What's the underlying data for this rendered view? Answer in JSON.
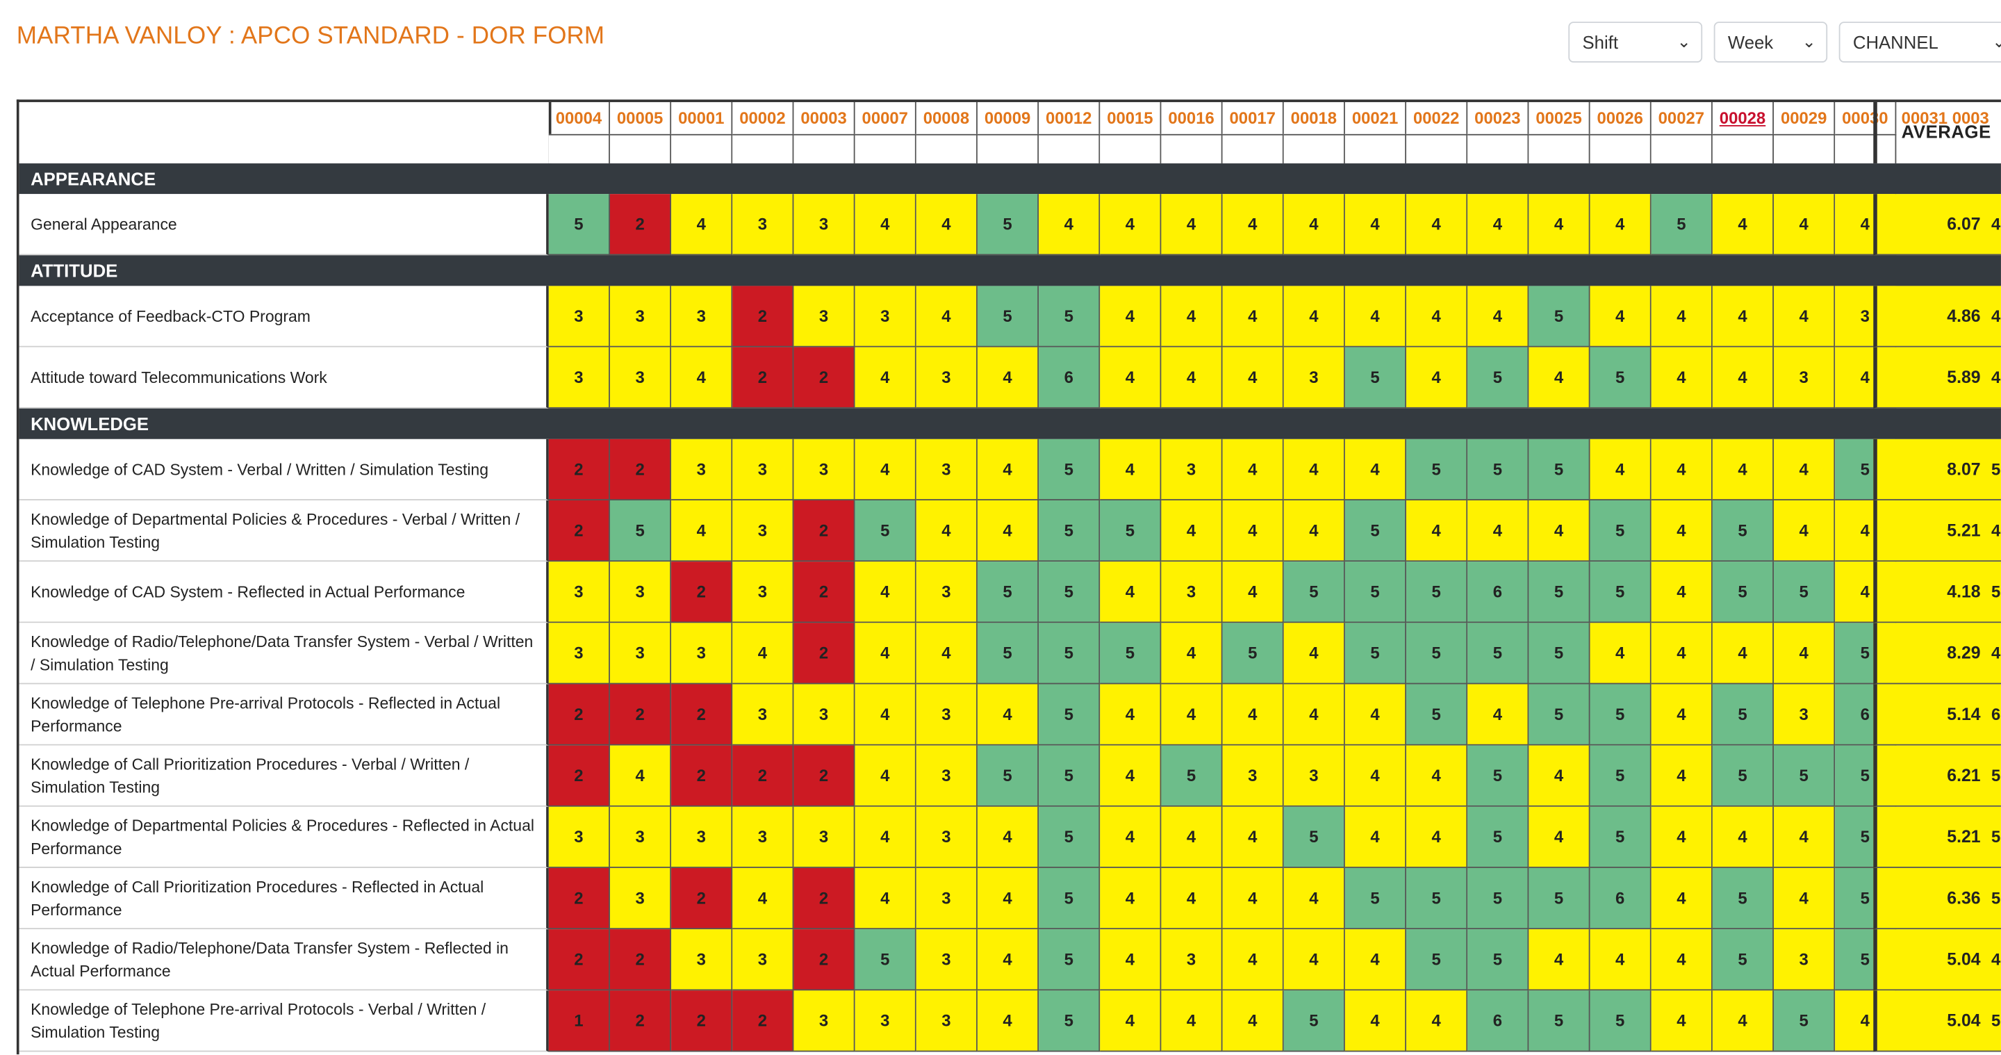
{
  "page_title": "MARTHA VANLOY : APCO STANDARD - DOR FORM",
  "filters": {
    "shift": "Shift",
    "week": "Week",
    "channel": "CHANNEL"
  },
  "columns": [
    "00004",
    "00005",
    "00001",
    "00002",
    "00003",
    "00007",
    "00008",
    "00009",
    "00012",
    "00015",
    "00016",
    "00017",
    "00018",
    "00021",
    "00022",
    "00023",
    "00025",
    "00026",
    "00027",
    "00028",
    "00029",
    "00030"
  ],
  "active_column": "00028",
  "average_label": "AVERAGE",
  "average_extra_columns": "00031  0003",
  "colors": {
    "high": "#6dbd8a",
    "mid": "#fff200",
    "low": "#cc1a23",
    "accent": "#e2761a",
    "section": "#343a40"
  },
  "sections": [
    {
      "name": "APPEARANCE",
      "rows": [
        {
          "label": "General Appearance",
          "values": [
            5,
            2,
            4,
            3,
            3,
            4,
            4,
            5,
            4,
            4,
            4,
            4,
            4,
            4,
            4,
            4,
            4,
            4,
            5,
            4,
            4,
            4
          ],
          "average": "6.07",
          "extra": "4"
        }
      ]
    },
    {
      "name": "ATTITUDE",
      "rows": [
        {
          "label": "Acceptance of Feedback-CTO Program",
          "values": [
            3,
            3,
            3,
            2,
            3,
            3,
            4,
            5,
            5,
            4,
            4,
            4,
            4,
            4,
            4,
            4,
            5,
            4,
            4,
            4,
            4,
            3
          ],
          "average": "4.86",
          "extra": "4"
        },
        {
          "label": "Attitude toward Telecommunications Work",
          "values": [
            3,
            3,
            4,
            2,
            2,
            4,
            3,
            4,
            6,
            4,
            4,
            4,
            3,
            5,
            4,
            5,
            4,
            5,
            4,
            4,
            3,
            4
          ],
          "average": "5.89",
          "extra": "4"
        }
      ]
    },
    {
      "name": "KNOWLEDGE",
      "rows": [
        {
          "label": "Knowledge of CAD System - Verbal / Written / Simulation Testing",
          "values": [
            2,
            2,
            3,
            3,
            3,
            4,
            3,
            4,
            5,
            4,
            3,
            4,
            4,
            4,
            5,
            5,
            5,
            4,
            4,
            4,
            4,
            5
          ],
          "average": "8.07",
          "extra": "5"
        },
        {
          "label": "Knowledge of Departmental Policies & Procedures - Verbal / Written / Simulation Testing",
          "values": [
            2,
            5,
            4,
            3,
            2,
            5,
            4,
            4,
            5,
            5,
            4,
            4,
            4,
            5,
            4,
            4,
            4,
            5,
            4,
            5,
            4,
            4
          ],
          "average": "5.21",
          "extra": "4"
        },
        {
          "label": "Knowledge of CAD System - Reflected in Actual Performance",
          "values": [
            3,
            3,
            2,
            3,
            2,
            4,
            3,
            5,
            5,
            4,
            3,
            4,
            5,
            5,
            5,
            6,
            5,
            5,
            4,
            5,
            5,
            4
          ],
          "average": "4.18",
          "extra": "5"
        },
        {
          "label": "Knowledge of Radio/Telephone/Data Transfer System - Verbal / Written / Simulation Testing",
          "values": [
            3,
            3,
            3,
            4,
            2,
            4,
            4,
            5,
            5,
            5,
            4,
            5,
            4,
            5,
            5,
            5,
            5,
            4,
            4,
            4,
            4,
            5
          ],
          "average": "8.29",
          "extra": "4"
        },
        {
          "label": "Knowledge of Telephone Pre-arrival Protocols - Reflected in Actual Performance",
          "values": [
            2,
            2,
            2,
            3,
            3,
            4,
            3,
            4,
            5,
            4,
            4,
            4,
            4,
            4,
            5,
            4,
            5,
            5,
            4,
            5,
            3,
            6
          ],
          "average": "5.14",
          "extra": "6"
        },
        {
          "label": "Knowledge of Call Prioritization Procedures - Verbal / Written / Simulation Testing",
          "values": [
            2,
            4,
            2,
            2,
            2,
            4,
            3,
            5,
            5,
            4,
            5,
            3,
            3,
            4,
            4,
            5,
            4,
            5,
            4,
            5,
            5,
            5
          ],
          "average": "6.21",
          "extra": "5"
        },
        {
          "label": "Knowledge of Departmental Policies & Procedures - Reflected in Actual Performance",
          "values": [
            3,
            3,
            3,
            3,
            3,
            4,
            3,
            4,
            5,
            4,
            4,
            4,
            5,
            4,
            4,
            5,
            4,
            5,
            4,
            4,
            4,
            5
          ],
          "average": "5.21",
          "extra": "5"
        },
        {
          "label": "Knowledge of Call Prioritization Procedures - Reflected in Actual Performance",
          "values": [
            2,
            3,
            2,
            4,
            2,
            4,
            3,
            4,
            5,
            4,
            4,
            4,
            4,
            5,
            5,
            5,
            5,
            6,
            4,
            5,
            4,
            5
          ],
          "average": "6.36",
          "extra": "5"
        },
        {
          "label": "Knowledge of Radio/Telephone/Data Transfer System - Reflected in Actual Performance",
          "values": [
            2,
            2,
            3,
            3,
            2,
            5,
            3,
            4,
            5,
            4,
            3,
            4,
            4,
            4,
            5,
            5,
            4,
            4,
            4,
            5,
            3,
            5
          ],
          "average": "5.04",
          "extra": "4"
        },
        {
          "label": "Knowledge of Telephone Pre-arrival Protocols - Verbal / Written / Simulation Testing",
          "values": [
            1,
            2,
            2,
            2,
            3,
            3,
            3,
            4,
            5,
            4,
            4,
            4,
            5,
            4,
            4,
            6,
            5,
            5,
            4,
            4,
            5,
            4
          ],
          "average": "5.04",
          "extra": "5"
        }
      ]
    }
  ]
}
